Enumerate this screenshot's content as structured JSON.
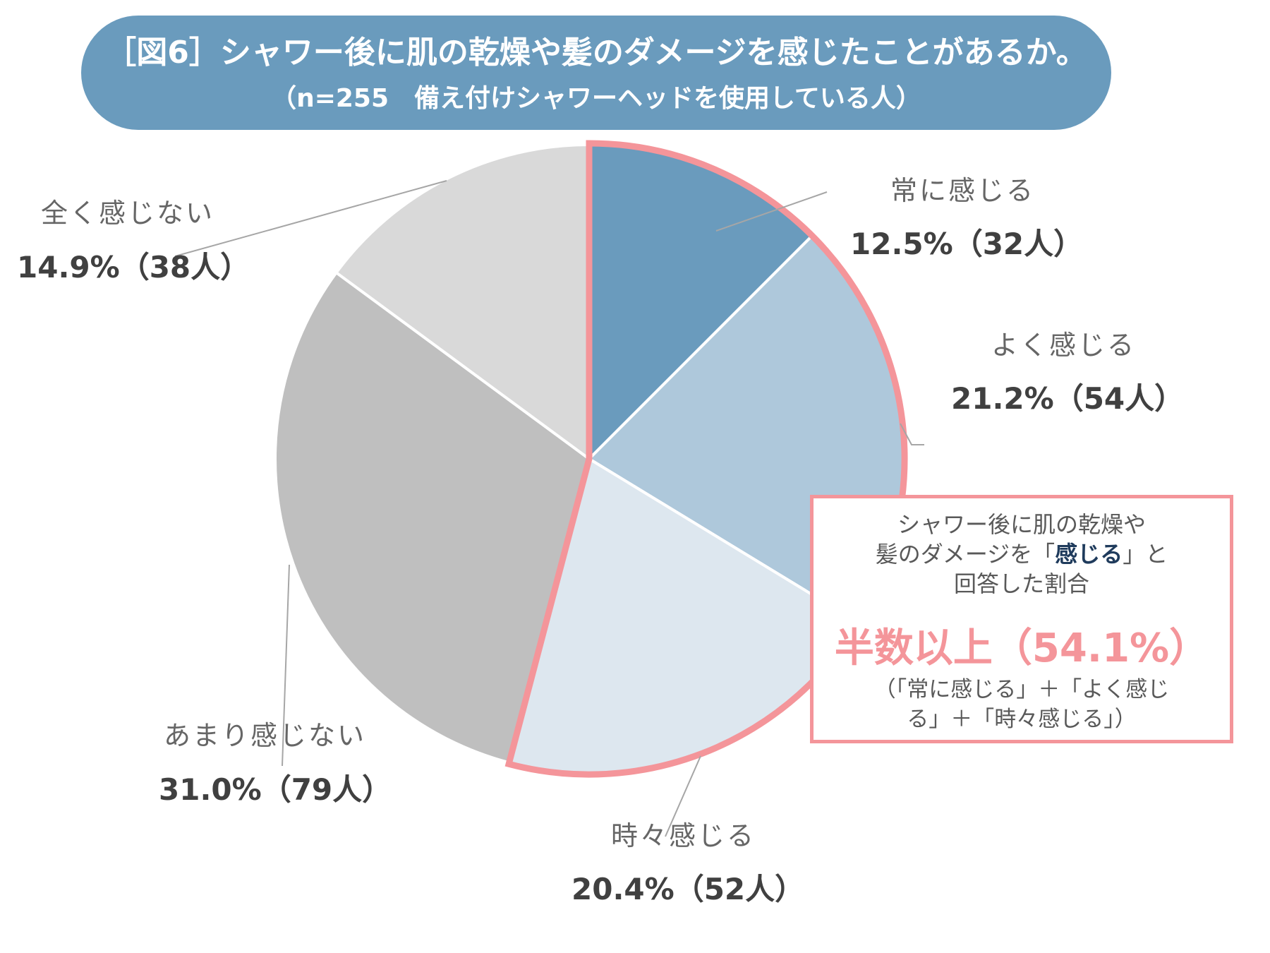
{
  "title": {
    "line1": "［図6］シャワー後に肌の乾燥や髪のダメージを感じたことがあるか。",
    "line2": "（n=255　備え付けシャワーヘッドを使用している人）"
  },
  "colors": {
    "banner": "#6a9bbd",
    "highlight": "#f4959a"
  },
  "chart_data": {
    "type": "pie",
    "title": "［図6］シャワー後に肌の乾燥や髪のダメージを感じたことがあるか。",
    "subtitle": "（n=255　備え付けシャワーヘッドを使用している人）",
    "slices": [
      {
        "label": "常に感じる",
        "value": 12.5,
        "count": 32,
        "value_text": "12.5%（32人）",
        "color": "#6a9bbd"
      },
      {
        "label": "よく感じる",
        "value": 21.2,
        "count": 54,
        "value_text": "21.2%（54人）",
        "color": "#aec8db"
      },
      {
        "label": "時々感じる",
        "value": 20.4,
        "count": 52,
        "value_text": "20.4%（52人）",
        "color": "#dde7ef"
      },
      {
        "label": "あまり感じない",
        "value": 31.0,
        "count": 79,
        "value_text": "31.0%（79人）",
        "color": "#bfbfbf"
      },
      {
        "label": "全く感じない",
        "value": 14.9,
        "count": 38,
        "value_text": "14.9%（38人）",
        "color": "#d9d9d9"
      }
    ],
    "highlighted_slices": [
      "常に感じる",
      "よく感じる",
      "時々感じる"
    ]
  },
  "callout": {
    "line1": "シャワー後に肌の乾燥や",
    "line2_pre": "髪のダメージを「",
    "line2_emph": "感じる",
    "line2_post": "」と",
    "line3": "回答した割合",
    "highlight": "半数以上（54.1%）",
    "note1": "（「常に感じる」＋「よく感じ",
    "note2": "る」＋「時々感じる」）"
  }
}
